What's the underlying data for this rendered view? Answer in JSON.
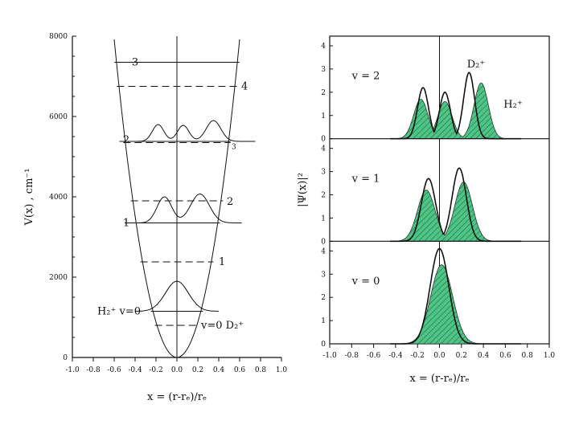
{
  "chart_data": [
    {
      "type": "line",
      "panel": "potential-energy",
      "ylabel": "V(x) , cm⁻¹",
      "xlabel": "x = (r-rₑ)/rₑ",
      "xlim": [
        -1.0,
        1.0
      ],
      "ylim": [
        0,
        8000
      ],
      "x_ticks": [
        "-1.0",
        "-0.8",
        "-0.6",
        "-0.4",
        "-0.2",
        "0.0",
        "0.2",
        "0.4",
        "0.6",
        "0.8",
        "1.0"
      ],
      "y_ticks": [
        "0",
        "2000",
        "4000",
        "6000",
        "8000"
      ],
      "potential": {
        "type": "parabola",
        "k": 22000
      },
      "h2_levels": [
        {
          "label": "H₂⁺ v=0",
          "energy": 1150
        },
        {
          "label": "1",
          "energy": 3350
        },
        {
          "label": "2",
          "energy": 5380
        },
        {
          "label": "3",
          "energy": 7350
        }
      ],
      "d2_levels": [
        {
          "label": "v=0 D₂⁺",
          "energy": 800
        },
        {
          "label": "1",
          "energy": 2380
        },
        {
          "label": "2",
          "energy": 3900
        },
        {
          "label": "3",
          "energy": 5350
        },
        {
          "label": "4",
          "energy": 6750
        }
      ],
      "wavefunction_baselines": [
        1150,
        3350,
        5380
      ]
    },
    {
      "type": "area",
      "panel": "probability-density",
      "ylabel": "|Ψ(x)|²",
      "xlabel": "x = (r-rₑ)/rₑ",
      "xlim": [
        -1.0,
        1.0
      ],
      "ylim": [
        0,
        4
      ],
      "x_ticks": [
        "-1.0",
        "-0.8",
        "-0.6",
        "-0.4",
        "-0.2",
        "0.0",
        "0.2",
        "0.4",
        "0.6",
        "0.8",
        "1.0"
      ],
      "y_ticks": [
        "0",
        "1",
        "2",
        "3",
        "4"
      ],
      "series": [
        {
          "name": "D₂⁺",
          "style": "open-outline"
        },
        {
          "name": "H₂⁺",
          "style": "green-hatched-fill",
          "color": "#3cb371"
        }
      ],
      "subpanels": [
        {
          "label": "v = 2",
          "D2": [
            {
              "x": -0.15,
              "y": 2.2
            },
            {
              "x": 0.05,
              "y": 2.0
            },
            {
              "x": 0.27,
              "y": 2.85
            }
          ],
          "H2": [
            {
              "x": -0.17,
              "y": 1.7
            },
            {
              "x": 0.05,
              "y": 1.6
            },
            {
              "x": 0.38,
              "y": 2.4
            }
          ]
        },
        {
          "label": "v = 1",
          "D2": [
            {
              "x": -0.1,
              "y": 2.7
            },
            {
              "x": 0.18,
              "y": 3.15
            }
          ],
          "H2": [
            {
              "x": -0.12,
              "y": 2.2
            },
            {
              "x": 0.22,
              "y": 2.55
            }
          ]
        },
        {
          "label": "v = 0",
          "D2": [
            {
              "x": 0.0,
              "y": 4.1
            }
          ],
          "H2": [
            {
              "x": 0.02,
              "y": 3.4
            }
          ]
        }
      ]
    }
  ],
  "left_ylabel": "V(x) , cm⁻¹",
  "left_xlabel": "x = (r-rₑ)/rₑ",
  "right_ylabel": "|Ψ(x)|²",
  "right_xlabel": "x = (r-rₑ)/rₑ",
  "legend_d2": "D₂⁺",
  "legend_h2": "H₂⁺"
}
